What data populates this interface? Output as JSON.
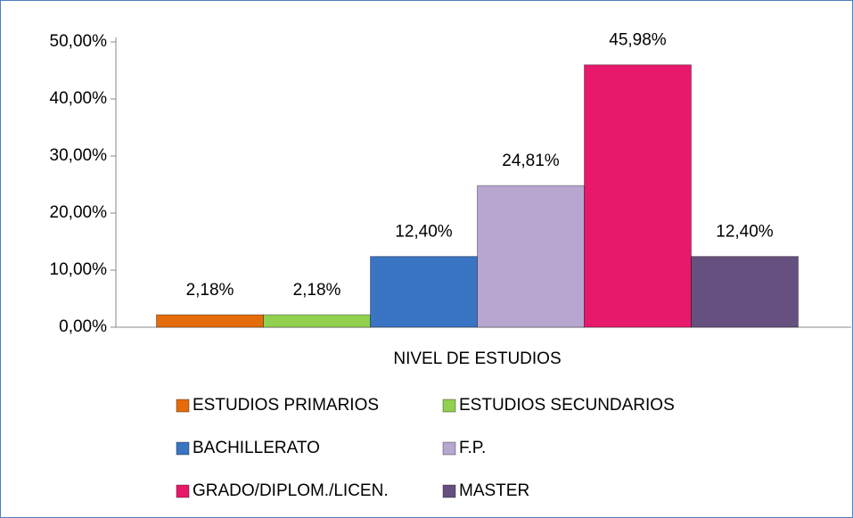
{
  "chart_data": {
    "type": "bar",
    "categories": [
      "NIVEL DE ESTUDIOS"
    ],
    "series": [
      {
        "name": "ESTUDIOS PRIMARIOS",
        "color": "#e46c0a",
        "values": [
          2.18
        ],
        "value_labels": [
          "2,18%"
        ]
      },
      {
        "name": "ESTUDIOS SECUNDARIOS",
        "color": "#92d050",
        "values": [
          2.18
        ],
        "value_labels": [
          "2,18%"
        ]
      },
      {
        "name": "BACHILLERATO",
        "color": "#3a75c4",
        "values": [
          12.4
        ],
        "value_labels": [
          "12,40%"
        ]
      },
      {
        "name": "F.P.",
        "color": "#b7a6d0",
        "values": [
          24.81
        ],
        "value_labels": [
          "24,81%"
        ]
      },
      {
        "name": "GRADO/DIPLOM./LICEN.",
        "color": "#e8186a",
        "values": [
          45.98
        ],
        "value_labels": [
          "45,98%"
        ]
      },
      {
        "name": "MASTER",
        "color": "#66507f",
        "values": [
          12.4
        ],
        "value_labels": [
          "12,40%"
        ]
      }
    ],
    "ylim": [
      0,
      50
    ],
    "yticks": [
      {
        "value": 0,
        "label": "0,00%"
      },
      {
        "value": 10,
        "label": "10,00%"
      },
      {
        "value": 20,
        "label": "20,00%"
      },
      {
        "value": 30,
        "label": "30,00%"
      },
      {
        "value": 40,
        "label": "40,00%"
      },
      {
        "value": 50,
        "label": "50,00%"
      }
    ],
    "grid": false,
    "legend": "bottom"
  }
}
